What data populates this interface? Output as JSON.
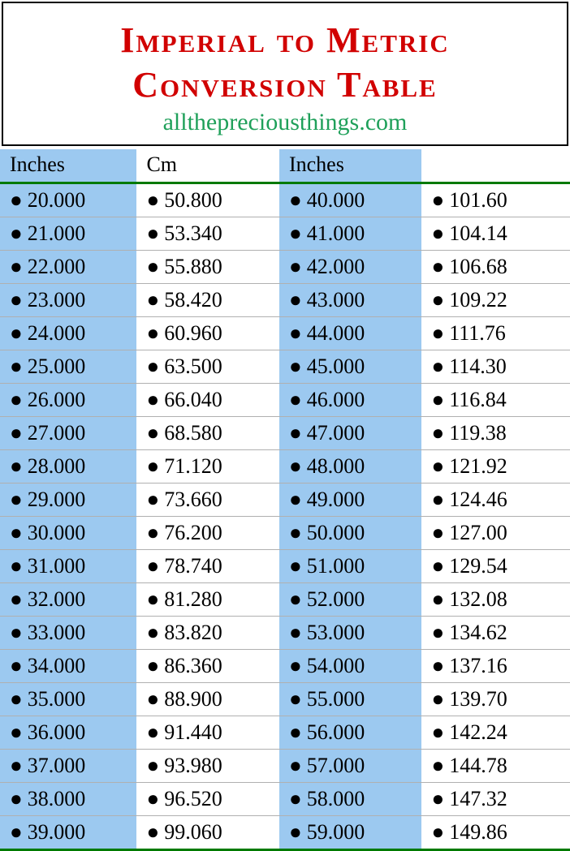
{
  "header": {
    "title_line1": "Imperial to Metric",
    "title_line2": "Conversion Table",
    "title_color": "#d10000",
    "title_fontsize": 44,
    "subtitle": "allthepreciousthings.com",
    "subtitle_color": "#1fa05a",
    "subtitle_fontsize": 30
  },
  "table": {
    "type": "table",
    "header_bg": "#ffffff",
    "row_odd_bg": "#9cc9f0",
    "row_even_bg": "#ffffff",
    "border_color": "#b0b0b0",
    "header_underline_color": "#007a00",
    "cell_fontsize": 26,
    "bullet": "●",
    "columns": [
      "Inches",
      "Cm",
      "Inches",
      ""
    ],
    "rows": [
      [
        "20.000",
        "50.800",
        "40.000",
        "101.60"
      ],
      [
        "21.000",
        "53.340",
        "41.000",
        "104.14"
      ],
      [
        "22.000",
        "55.880",
        "42.000",
        "106.68"
      ],
      [
        "23.000",
        "58.420",
        "43.000",
        "109.22"
      ],
      [
        "24.000",
        "60.960",
        "44.000",
        "111.76"
      ],
      [
        "25.000",
        "63.500",
        "45.000",
        "114.30"
      ],
      [
        "26.000",
        "66.040",
        "46.000",
        "116.84"
      ],
      [
        "27.000",
        "68.580",
        "47.000",
        "119.38"
      ],
      [
        "28.000",
        "71.120",
        "48.000",
        "121.92"
      ],
      [
        "29.000",
        "73.660",
        "49.000",
        "124.46"
      ],
      [
        "30.000",
        "76.200",
        "50.000",
        "127.00"
      ],
      [
        "31.000",
        "78.740",
        "51.000",
        "129.54"
      ],
      [
        "32.000",
        "81.280",
        "52.000",
        "132.08"
      ],
      [
        "33.000",
        "83.820",
        "53.000",
        "134.62"
      ],
      [
        "34.000",
        "86.360",
        "54.000",
        "137.16"
      ],
      [
        "35.000",
        "88.900",
        "55.000",
        "139.70"
      ],
      [
        "36.000",
        "91.440",
        "56.000",
        "142.24"
      ],
      [
        "37.000",
        "93.980",
        "57.000",
        "144.78"
      ],
      [
        "38.000",
        "96.520",
        "58.000",
        "147.32"
      ],
      [
        "39.000",
        "99.060",
        "59.000",
        "149.86"
      ]
    ]
  }
}
